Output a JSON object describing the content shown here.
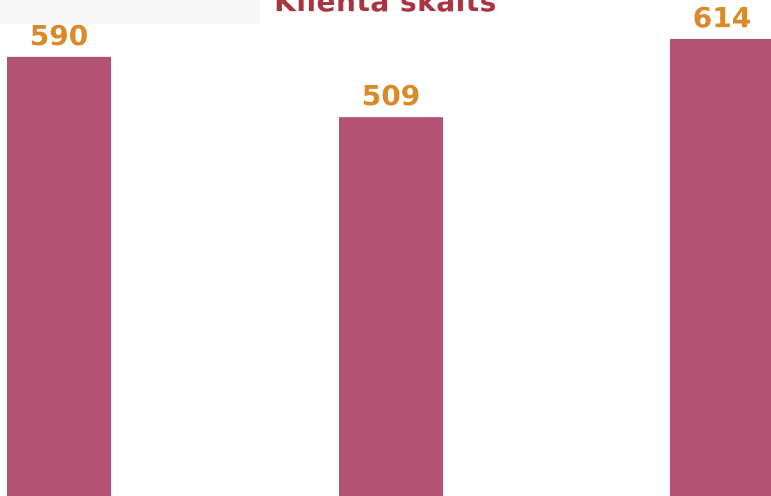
{
  "chart_data": {
    "type": "bar",
    "title": "Klienta skaits",
    "categories": [
      "",
      "",
      ""
    ],
    "values": [
      590,
      509,
      614
    ],
    "ylim": [
      0,
      614
    ],
    "grid": false,
    "legend": "none",
    "colors": {
      "bar": "#b25373",
      "value_label": "#d98b2b",
      "title": "#a8353f"
    }
  }
}
